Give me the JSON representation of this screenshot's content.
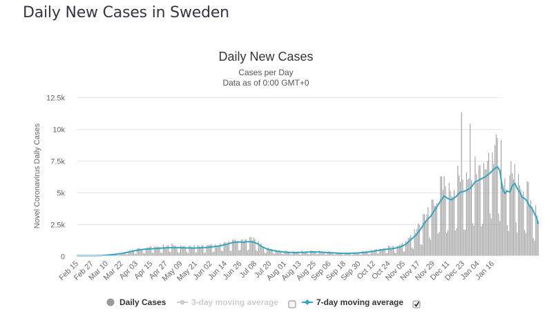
{
  "page": {
    "title": "Daily New Cases in Sweden"
  },
  "chart_data": {
    "type": "bar",
    "title": "Daily New Cases",
    "subtitle_lines": [
      "Cases per Day",
      "Data as of 0:00 GMT+0"
    ],
    "xlabel": "",
    "ylabel": "Novel Coronavirus Daily Cases",
    "ylim": [
      0,
      12500
    ],
    "yticks": [
      0,
      2500,
      5000,
      7500,
      10000,
      12500
    ],
    "ytick_labels": [
      "0",
      "2.5k",
      "5k",
      "7.5k",
      "10k",
      "12.5k"
    ],
    "grid": true,
    "start_date": "Feb 15",
    "xtick_labels": [
      "Feb 15",
      "Feb 27",
      "Mar 10",
      "Mar 22",
      "Apr 03",
      "Apr 15",
      "Apr 27",
      "May 09",
      "May 21",
      "Jun 02",
      "Jun 14",
      "Jun 26",
      "Jul 08",
      "Jul 20",
      "Aug 01",
      "Aug 13",
      "Aug 25",
      "Sep 06",
      "Sep 18",
      "Sep 30",
      "Oct 12",
      "Oct 24",
      "Nov 05",
      "Nov 17",
      "Nov 29",
      "Dec 11",
      "Dec 23",
      "Jan 04",
      "Jan 16"
    ],
    "xtick_day_interval": 12,
    "legend_placement": "bottom",
    "series": [
      {
        "name": "Daily Cases",
        "kind": "bar",
        "color": "#999999",
        "visible": true
      },
      {
        "name": "3-day moving average",
        "kind": "line",
        "color": "#cccccc",
        "visible": false
      },
      {
        "name": "7-day moving average",
        "kind": "line",
        "color": "#33a3c6",
        "visible": true
      }
    ],
    "ma7_anchors": [
      [
        0,
        0
      ],
      [
        14,
        2
      ],
      [
        20,
        10
      ],
      [
        26,
        60
      ],
      [
        32,
        120
      ],
      [
        38,
        200
      ],
      [
        44,
        330
      ],
      [
        50,
        450
      ],
      [
        56,
        520
      ],
      [
        64,
        560
      ],
      [
        72,
        620
      ],
      [
        80,
        640
      ],
      [
        88,
        610
      ],
      [
        96,
        600
      ],
      [
        104,
        640
      ],
      [
        110,
        700
      ],
      [
        116,
        780
      ],
      [
        122,
        920
      ],
      [
        126,
        1030
      ],
      [
        130,
        1080
      ],
      [
        134,
        1060
      ],
      [
        138,
        1100
      ],
      [
        142,
        1090
      ],
      [
        146,
        950
      ],
      [
        150,
        700
      ],
      [
        154,
        520
      ],
      [
        160,
        380
      ],
      [
        168,
        280
      ],
      [
        176,
        240
      ],
      [
        184,
        270
      ],
      [
        190,
        300
      ],
      [
        196,
        290
      ],
      [
        204,
        240
      ],
      [
        212,
        190
      ],
      [
        220,
        180
      ],
      [
        228,
        220
      ],
      [
        236,
        300
      ],
      [
        244,
        420
      ],
      [
        250,
        500
      ],
      [
        256,
        560
      ],
      [
        262,
        700
      ],
      [
        266,
        900
      ],
      [
        270,
        1250
      ],
      [
        274,
        1600
      ],
      [
        278,
        2100
      ],
      [
        282,
        2700
      ],
      [
        286,
        3100
      ],
      [
        290,
        3700
      ],
      [
        294,
        4300
      ],
      [
        297,
        4700
      ],
      [
        300,
        4500
      ],
      [
        303,
        4400
      ],
      [
        306,
        4600
      ],
      [
        310,
        5000
      ],
      [
        314,
        5100
      ],
      [
        318,
        5300
      ],
      [
        322,
        5800
      ],
      [
        326,
        6000
      ],
      [
        330,
        6200
      ],
      [
        334,
        6500
      ],
      [
        337,
        6800
      ],
      [
        340,
        7000
      ],
      [
        342,
        6700
      ],
      [
        344,
        5300
      ],
      [
        346,
        4900
      ],
      [
        348,
        5100
      ],
      [
        350,
        5000
      ],
      [
        352,
        5500
      ],
      [
        354,
        5700
      ],
      [
        356,
        5300
      ],
      [
        358,
        5000
      ],
      [
        360,
        4600
      ],
      [
        362,
        4500
      ],
      [
        364,
        4300
      ],
      [
        366,
        3900
      ],
      [
        368,
        3700
      ],
      [
        370,
        3300
      ],
      [
        372,
        2900
      ],
      [
        373,
        2500
      ]
    ],
    "weekday_factors": [
      1.35,
      1.25,
      1.15,
      1.2,
      1.2,
      0.45,
      0.4
    ],
    "notable_peaks": [
      {
        "date": "Dec 22",
        "value": 11300
      },
      {
        "date": "Dec 29",
        "value": 10400
      }
    ]
  },
  "legend": {
    "daily_cases": "Daily Cases",
    "ma3": "3-day moving average",
    "ma7": "7-day moving average",
    "ma3_checked": false,
    "ma7_checked": true
  }
}
